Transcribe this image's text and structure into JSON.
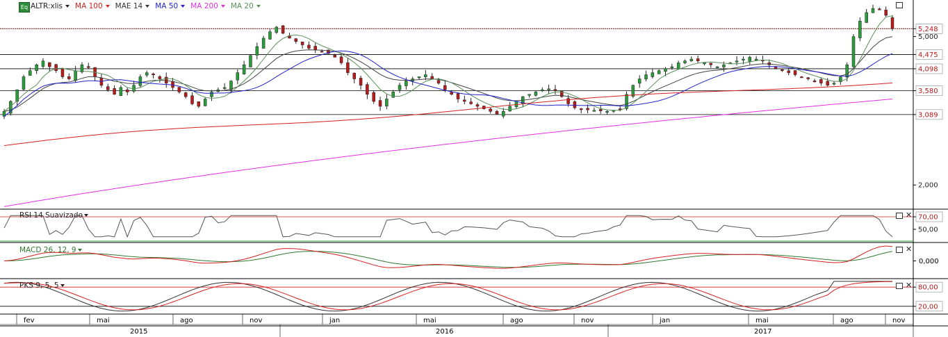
{
  "header": {
    "icon_label": "Eq",
    "symbol": "ALTR:xlis",
    "indicators": [
      {
        "label": "MA 100",
        "color": "#d42020"
      },
      {
        "label": "MAE 14",
        "color": "#444444"
      },
      {
        "label": "MA 50",
        "color": "#2323c8"
      },
      {
        "label": "MA 200",
        "color": "#e030e0"
      },
      {
        "label": "MA 20",
        "color": "#5a8f5a"
      }
    ]
  },
  "colors": {
    "up_candle": "#2a9d3a",
    "down_candle": "#b81b1b",
    "wick": "#222222",
    "price_line_level": "#7a0000",
    "ma100": "#d42020",
    "mae14": "#444444",
    "ma50": "#2323c8",
    "ma200": "#e030e0",
    "ma20": "#5a8f5a",
    "rsi": "#555555",
    "macd_line": "#d42020",
    "macd_signal": "#2f7a2f",
    "pks_k": "#333333",
    "pks_d": "#d42020",
    "level_tag_text": "#b81b1b"
  },
  "price_axis": {
    "labels": [
      "5,248",
      "5,000",
      "4,475",
      "4,098",
      "3,580",
      "3,089",
      "2,000"
    ],
    "current_price": "5,248",
    "levels": [
      "4,475",
      "4,098",
      "3,580",
      "3,089"
    ]
  },
  "subpanels": {
    "rsi": {
      "title": "RSI 14 Suavizado",
      "axis": [
        "70,00",
        "50,00"
      ],
      "level": "70,00"
    },
    "macd": {
      "title": "MACD 26, 12, 9",
      "axis": [
        "0,000"
      ]
    },
    "pks": {
      "title": "PKS 9, 5, 5",
      "axis": [
        "80,00",
        "20,00"
      ],
      "levels": [
        "80,00",
        "20,00"
      ]
    }
  },
  "time_axis": {
    "months": [
      "fev",
      "mai",
      "ago",
      "nov",
      "jan",
      "mai",
      "ago",
      "nov",
      "jan",
      "mai",
      "ago",
      "nov"
    ],
    "years": [
      "2015",
      "2016",
      "2017"
    ]
  },
  "chart_data": {
    "type": "candlestick",
    "symbol": "ALTR:xlis",
    "y_scale": "log",
    "ylim": [
      1700,
      6000
    ],
    "series_close": [
      3.15,
      3.35,
      3.6,
      3.9,
      4.05,
      4.2,
      4.3,
      4.15,
      4.05,
      3.9,
      3.85,
      4.05,
      4.2,
      4.15,
      3.9,
      3.7,
      3.6,
      3.5,
      3.65,
      3.55,
      3.7,
      3.9,
      4.0,
      3.95,
      3.85,
      3.75,
      3.65,
      3.55,
      3.45,
      3.3,
      3.25,
      3.4,
      3.55,
      3.6,
      3.65,
      3.8,
      4.0,
      4.2,
      4.45,
      4.7,
      4.95,
      5.15,
      5.3,
      5.1,
      4.95,
      4.85,
      4.75,
      4.65,
      4.6,
      4.55,
      4.5,
      4.4,
      4.25,
      4.0,
      3.85,
      3.7,
      3.5,
      3.35,
      3.25,
      3.4,
      3.55,
      3.7,
      3.8,
      3.85,
      3.9,
      3.95,
      3.85,
      3.75,
      3.6,
      3.5,
      3.4,
      3.35,
      3.3,
      3.25,
      3.2,
      3.15,
      3.1,
      3.15,
      3.25,
      3.35,
      3.45,
      3.5,
      3.55,
      3.6,
      3.62,
      3.58,
      3.45,
      3.3,
      3.22,
      3.2,
      3.18,
      3.17,
      3.16,
      3.15,
      3.17,
      3.2,
      3.5,
      3.7,
      3.85,
      3.95,
      4.0,
      4.05,
      4.1,
      4.15,
      4.25,
      4.3,
      4.35,
      4.3,
      4.25,
      4.2,
      4.15,
      4.2,
      4.25,
      4.3,
      4.35,
      4.4,
      4.35,
      4.3,
      4.2,
      4.1,
      4.05,
      4.0,
      3.95,
      3.9,
      3.85,
      3.8,
      3.75,
      3.7,
      3.75,
      3.9,
      4.2,
      5.0,
      5.5,
      5.8,
      5.95,
      5.9,
      5.7,
      5.25
    ],
    "moving_averages": [
      "MA 100",
      "MAE 14",
      "MA 50",
      "MA 200",
      "MA 20"
    ],
    "price_levels": [
      4475,
      4098,
      3580,
      3089
    ],
    "last_price": 5248,
    "x_period": [
      "2015",
      "2016",
      "2017"
    ]
  }
}
